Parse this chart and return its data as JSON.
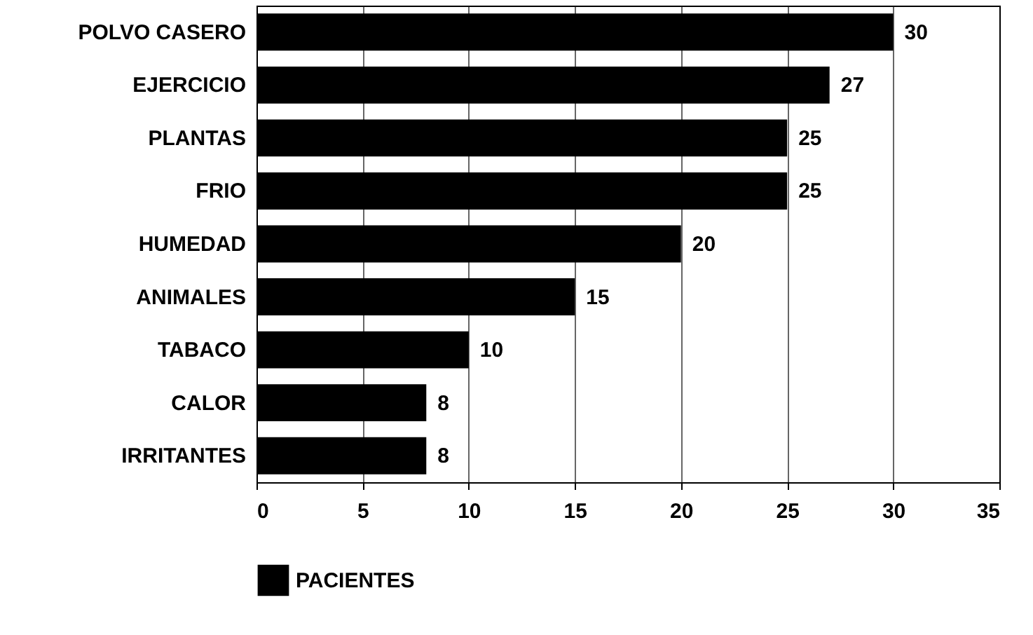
{
  "chart_data": {
    "type": "bar",
    "orientation": "horizontal",
    "categories": [
      "POLVO CASERO",
      "EJERCICIO",
      "PLANTAS",
      "FRIO",
      "HUMEDAD",
      "ANIMALES",
      "TABACO",
      "CALOR",
      "IRRITANTES"
    ],
    "series": [
      {
        "name": "PACIENTES",
        "color": "#000000",
        "values": [
          30,
          27,
          25,
          25,
          20,
          15,
          10,
          8,
          8
        ]
      }
    ],
    "xlim": [
      0,
      35
    ],
    "xticks": [
      0,
      5,
      10,
      15,
      20,
      25,
      30,
      35
    ],
    "grid": "x",
    "legend": "bottom",
    "data_labels": true
  }
}
